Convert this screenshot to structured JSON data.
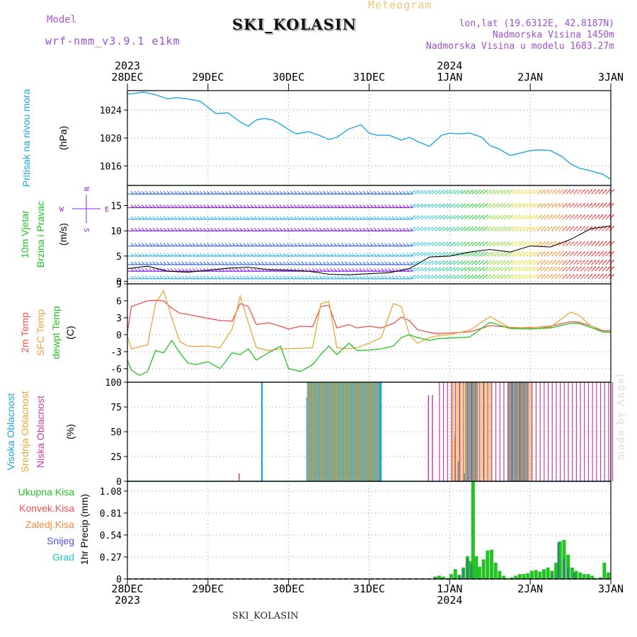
{
  "header": {
    "model_label": "Model",
    "model_name": "wrf-nmm_v3.9.1 e1km",
    "station": "SKI_KOLASIN",
    "product": "Meteogram",
    "location": "lon,lat (19.6312E, 42.8187N)",
    "altitude": "Nadmorska Visina 1450m",
    "model_altitude": "Nadmorska Visina u modelu 1683.27m"
  },
  "footer": {
    "station": "SKI_KOLASIN",
    "watermark": "made by Angel"
  },
  "colors": {
    "pressure": "#1ea6e0",
    "wind_label": "#22c322",
    "wind_line": "#000000",
    "temp_2m": "#f25050",
    "temp_sfc": "#e6a83a",
    "dewpoint": "#22c322",
    "cloud_high": "#1ea6e0",
    "cloud_mid": "#e6a83a",
    "cloud_low": "#c8409f",
    "precip_total": "#22c322",
    "precip_conv": "#f25050",
    "precip_frz": "#f28c38",
    "precip_snow": "#5050e0",
    "precip_graupel": "#1ec8c8"
  },
  "chart_data": [
    {
      "type": "line",
      "panel": "pressure",
      "ylabel": [
        "Pritisak na nivou mora",
        "(hPa)"
      ],
      "x_top_labels": [
        "28DEC",
        "29DEC",
        "30DEC",
        "31DEC",
        "1JAN",
        "2JAN",
        "3JAN"
      ],
      "x_top_years": [
        {
          "label": "2023",
          "at": "28DEC"
        },
        {
          "label": "2024",
          "at": "1JAN"
        }
      ],
      "yticks": [
        1016,
        1020,
        1024
      ],
      "ylim": [
        1013.2,
        1026.8
      ],
      "grid": true,
      "series": [
        {
          "x": [
            0,
            0.1,
            0.2,
            0.35,
            0.5,
            0.6,
            0.75,
            0.9,
            1.0,
            1.1,
            1.25,
            1.4,
            1.5,
            1.6,
            1.7,
            1.8,
            1.9,
            2.0,
            2.1,
            2.25,
            2.4,
            2.5,
            2.6,
            2.75,
            2.9,
            3.0,
            3.1,
            3.25,
            3.4,
            3.5,
            3.6,
            3.75,
            3.9,
            4.0,
            4.1,
            4.25,
            4.4,
            4.5,
            4.6,
            4.75,
            4.9,
            5.0,
            5.1,
            5.25,
            5.4,
            5.5,
            5.6,
            5.75,
            5.9,
            6.0
          ],
          "values": [
            1026.3,
            1026.4,
            1026.6,
            1026.2,
            1025.6,
            1025.8,
            1025.6,
            1025.3,
            1024.4,
            1023.5,
            1023.6,
            1022.3,
            1021.7,
            1022.6,
            1022.8,
            1022.6,
            1022.0,
            1021.2,
            1020.6,
            1020.9,
            1020.3,
            1019.8,
            1020.1,
            1021.3,
            1021.9,
            1020.7,
            1020.4,
            1020.4,
            1019.7,
            1020.1,
            1019.5,
            1018.8,
            1020.4,
            1020.7,
            1020.6,
            1020.7,
            1020.1,
            1018.9,
            1018.5,
            1017.5,
            1017.9,
            1018.2,
            1018.3,
            1018.2,
            1017.3,
            1016.3,
            1015.7,
            1015.3,
            1014.8,
            1014.1
          ]
        }
      ]
    },
    {
      "type": "line",
      "panel": "wind",
      "ylabel": [
        "10m Vjetar",
        "Brzina i Pravac",
        "(m/s)"
      ],
      "direction_legend": [
        "N",
        "W",
        "E",
        "S"
      ],
      "yticks": [
        0,
        5,
        10,
        15
      ],
      "ylim": [
        -0.5,
        19
      ],
      "grid": true,
      "series": [
        {
          "x": [
            0,
            0.25,
            0.5,
            0.75,
            1.0,
            1.25,
            1.5,
            1.75,
            2.0,
            2.25,
            2.5,
            2.75,
            3.0,
            3.25,
            3.5,
            3.75,
            4.0,
            4.25,
            4.5,
            4.75,
            5.0,
            5.25,
            5.5,
            5.75,
            6.0
          ],
          "values": [
            2.5,
            3.0,
            2.0,
            1.8,
            2.2,
            2.6,
            2.8,
            2.3,
            2.2,
            2.0,
            1.4,
            1.3,
            1.5,
            1.7,
            2.5,
            4.8,
            5.0,
            5.8,
            6.3,
            5.8,
            7.0,
            6.8,
            8.3,
            10.4,
            11.0
          ]
        }
      ]
    },
    {
      "type": "line",
      "panel": "temperature",
      "ylabel": [
        "2m Temp",
        "SFC Temp",
        "dewpt Temp",
        "(C)"
      ],
      "yticks": [
        -6,
        -3,
        0,
        3,
        6,
        9
      ],
      "ylim": [
        -8.4,
        9
      ],
      "grid": true,
      "x": [
        0,
        0.05,
        0.15,
        0.25,
        0.35,
        0.45,
        0.55,
        0.65,
        0.75,
        0.85,
        1.0,
        1.15,
        1.3,
        1.4,
        1.5,
        1.6,
        1.75,
        1.9,
        2.0,
        2.15,
        2.3,
        2.4,
        2.5,
        2.6,
        2.75,
        2.85,
        3.0,
        3.15,
        3.3,
        3.4,
        3.5,
        3.6,
        3.75,
        3.85,
        4.0,
        4.25,
        4.5,
        4.75,
        5.0,
        5.25,
        5.5,
        5.6,
        5.75,
        5.9,
        6.0
      ],
      "series": [
        {
          "name": "2m Temp",
          "values": [
            0.4,
            5.0,
            5.5,
            6.0,
            6.1,
            6.0,
            4.7,
            3.8,
            3.6,
            3.3,
            2.9,
            2.5,
            2.4,
            5.5,
            5.0,
            1.8,
            2.1,
            1.5,
            1.0,
            1.5,
            1.4,
            5.0,
            5.2,
            1.2,
            1.8,
            1.2,
            1.5,
            1.2,
            2.0,
            3.1,
            2.5,
            0.9,
            0.4,
            0.2,
            0.3,
            0.5,
            1.6,
            1.3,
            1.2,
            1.5,
            2.3,
            2.2,
            1.6,
            0.7,
            0.7
          ]
        },
        {
          "name": "SFC Temp",
          "values": [
            -0.3,
            -2.5,
            -2.1,
            -1.8,
            5.5,
            7.8,
            3.0,
            -1.2,
            -2.0,
            -2.1,
            -2.0,
            -2.3,
            1.0,
            6.8,
            2.2,
            -2.3,
            -2.8,
            -2.5,
            -2.5,
            -2.4,
            -2.3,
            5.5,
            5.9,
            -2.3,
            -2.5,
            -2.3,
            -1.5,
            -0.5,
            5.5,
            5.0,
            0.0,
            -1.5,
            -0.5,
            -0.2,
            0.0,
            0.8,
            3.2,
            1.2,
            1.3,
            1.3,
            4.0,
            3.5,
            1.6,
            0.5,
            0.4
          ]
        },
        {
          "name": "dewpt Temp",
          "values": [
            -4.5,
            -6.3,
            -7.2,
            -6.5,
            -2.8,
            -3.2,
            -1.0,
            -3.2,
            -5.0,
            -5.3,
            -4.8,
            -6.0,
            -3.2,
            -3.5,
            -2.5,
            -4.5,
            -3.2,
            -2.0,
            -6.0,
            -6.5,
            -5.3,
            -3.5,
            -2.0,
            -3.5,
            -1.5,
            -2.8,
            -2.7,
            -2.5,
            -2.0,
            -0.5,
            0.0,
            -0.5,
            -1.0,
            -0.7,
            -0.6,
            -0.4,
            2.2,
            1.1,
            1.0,
            1.2,
            2.0,
            2.0,
            1.3,
            0.5,
            0.4
          ]
        }
      ]
    },
    {
      "type": "bar",
      "panel": "cloud_cover",
      "ylabel": [
        "Visoka Oblacnost",
        "Srednja Oblacnost",
        "Niska Oblacnost",
        "(%)"
      ],
      "yticks": [
        0,
        25,
        50,
        75,
        100
      ],
      "ylim": [
        0,
        100
      ],
      "grid": true,
      "series": [
        {
          "name": "Visoka Oblacnost",
          "segments": [
            [
              1.66,
              1.68,
              100
            ],
            [
              2.22,
              2.24,
              85
            ],
            [
              4.1,
              4.12,
              20
            ],
            [
              4.17,
              4.19,
              8
            ],
            [
              4.25,
              4.27,
              8
            ],
            [
              4.75,
              4.77,
              10
            ]
          ],
          "dense_ranges": [
            [
              2.23,
              3.15,
              100
            ],
            [
              4.2,
              4.32,
              100
            ],
            [
              4.72,
              4.95,
              100
            ]
          ]
        },
        {
          "name": "Srednja Oblacnost",
          "segments": [
            [
              4.05,
              4.06,
              47
            ],
            [
              4.06,
              4.07,
              45
            ]
          ],
          "dense_ranges": [
            [
              2.22,
              3.12,
              100
            ],
            [
              4.02,
              4.5,
              100
            ],
            [
              4.72,
              5.0,
              100
            ]
          ]
        },
        {
          "name": "Niska Oblacnost",
          "segments": [
            [
              1.38,
              1.39,
              8
            ],
            [
              3.73,
              3.74,
              87
            ],
            [
              3.78,
              3.79,
              87
            ]
          ],
          "dense_ranges": [
            [
              3.85,
              6.0,
              100
            ]
          ]
        }
      ]
    },
    {
      "type": "bar",
      "panel": "precipitation",
      "ylabel": [
        "1hr Precip (mm)"
      ],
      "legend": [
        "Ukupna Kisa",
        "Konvek.Kisa",
        "Zaledj.Kisa",
        "Snijeg",
        "Grad"
      ],
      "yticks": [
        0,
        0.27,
        0.54,
        0.81,
        1.08
      ],
      "ylim": [
        0,
        1.2
      ],
      "grid": true,
      "x_bottom_labels": [
        "28DEC",
        "29DEC",
        "30DEC",
        "31DEC",
        "1JAN",
        "2JAN",
        "3JAN"
      ],
      "x_bottom_years": [
        {
          "label": "2023",
          "at": "28DEC"
        },
        {
          "label": "2024",
          "at": "1JAN"
        }
      ],
      "series": [
        {
          "name": "Ukupna Kisa",
          "x": [
            3.82,
            3.87,
            3.92,
            3.97,
            4.02,
            4.07,
            4.12,
            4.17,
            4.22,
            4.25,
            4.29,
            4.33,
            4.37,
            4.42,
            4.47,
            4.52,
            4.57,
            4.62,
            4.67,
            4.72,
            4.77,
            4.82,
            4.87,
            4.92,
            4.97,
            5.02,
            5.07,
            5.12,
            5.17,
            5.22,
            5.27,
            5.32,
            5.37,
            5.42,
            5.47,
            5.52,
            5.57,
            5.62,
            5.67,
            5.72,
            5.77,
            5.82,
            5.87,
            5.92,
            5.97
          ],
          "values": [
            0.03,
            0.04,
            0.03,
            0.01,
            0.06,
            0.12,
            0.05,
            0.14,
            0.28,
            0.22,
            1.2,
            0.28,
            0.15,
            0.24,
            0.35,
            0.36,
            0.2,
            0.1,
            0.04,
            0.01,
            0.02,
            0.04,
            0.06,
            0.06,
            0.07,
            0.1,
            0.11,
            0.09,
            0.12,
            0.14,
            0.1,
            0.2,
            0.46,
            0.48,
            0.3,
            0.14,
            0.1,
            0.08,
            0.06,
            0.06,
            0.04,
            0.01,
            0.02,
            0.2,
            0.08
          ]
        },
        {
          "name": "Snijeg",
          "x": [
            4.12,
            4.17,
            4.22,
            4.27,
            5.27,
            5.35,
            5.42,
            5.47,
            5.55
          ],
          "values": [
            0.05,
            0.12,
            0.25,
            0.18,
            0.07,
            0.45,
            0.25,
            0.15,
            0.08
          ]
        }
      ]
    }
  ]
}
